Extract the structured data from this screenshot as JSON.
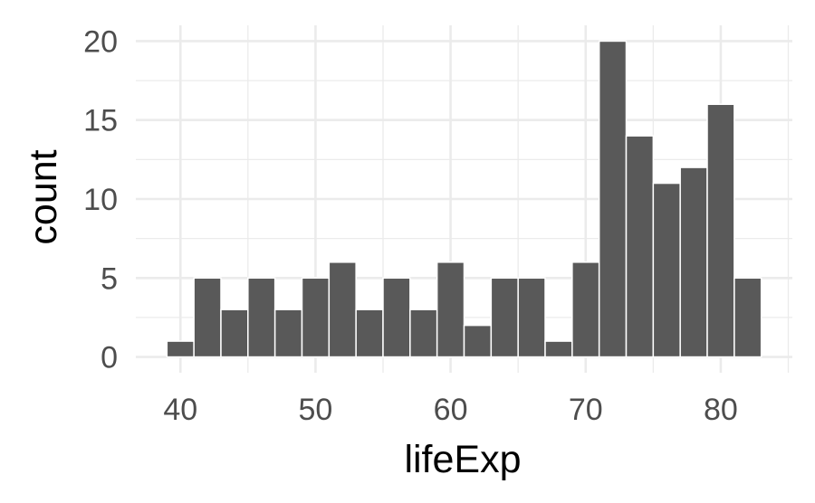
{
  "chart_data": {
    "type": "bar",
    "xlabel": "lifeExp",
    "ylabel": "count",
    "xlim": [
      36.7,
      85.3
    ],
    "ylim": [
      -1,
      21
    ],
    "x_ticks": [
      40,
      50,
      60,
      70,
      80
    ],
    "y_ticks": [
      0,
      5,
      10,
      15,
      20
    ],
    "bin_width": 2,
    "bin_centers": [
      40,
      42,
      44,
      46,
      48,
      50,
      52,
      54,
      56,
      58,
      60,
      62,
      64,
      66,
      68,
      70,
      72,
      74,
      76,
      78,
      80,
      82
    ],
    "values": [
      1,
      5,
      3,
      5,
      3,
      5,
      6,
      3,
      5,
      3,
      6,
      2,
      5,
      5,
      1,
      6,
      20,
      14,
      11,
      12,
      16,
      5
    ],
    "grid": true,
    "bar_color": "#595959"
  }
}
